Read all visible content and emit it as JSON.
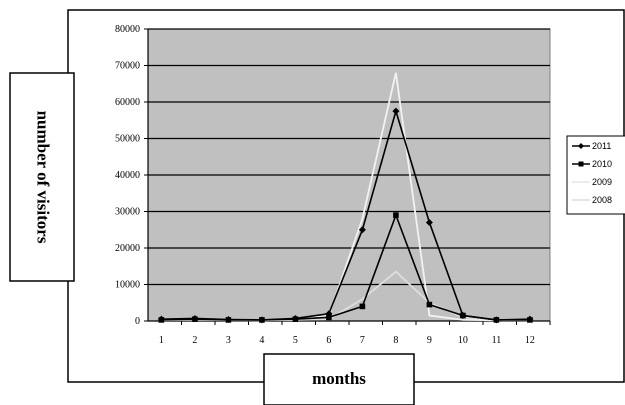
{
  "chart_data": {
    "type": "line",
    "title": "",
    "xlabel": "months",
    "ylabel": "number of visitors",
    "x": [
      1,
      2,
      3,
      4,
      5,
      6,
      7,
      8,
      9,
      10,
      11,
      12
    ],
    "categories": [
      "1",
      "2",
      "3",
      "4",
      "5",
      "6",
      "7",
      "8",
      "9",
      "10",
      "11",
      "12"
    ],
    "ylim": [
      0,
      80000
    ],
    "yticks": [
      0,
      10000,
      20000,
      30000,
      40000,
      50000,
      60000,
      70000,
      80000
    ],
    "ytick_labels": [
      "0",
      "10000",
      "20000",
      "30000",
      "40000",
      "50000",
      "60000",
      "70000",
      "80000"
    ],
    "grid": "horizontal",
    "plot_background": "#c0c0c0",
    "legend_position": "right",
    "series": [
      {
        "name": "2011",
        "color": "#000000",
        "marker": "diamond",
        "values": [
          500,
          700,
          400,
          300,
          700,
          2000,
          25000,
          57500,
          27000,
          1500,
          300,
          500
        ]
      },
      {
        "name": "2010",
        "color": "#000000",
        "marker": "square",
        "values": [
          300,
          500,
          300,
          300,
          500,
          1000,
          4000,
          29000,
          4500,
          1500,
          300,
          300
        ]
      },
      {
        "name": "2009",
        "color": "#f2f2f2",
        "marker": "none",
        "values": [
          300,
          400,
          300,
          200,
          300,
          1500,
          28000,
          68000,
          1500,
          300,
          200,
          200
        ]
      },
      {
        "name": "2008",
        "color": "#dddddd",
        "marker": "none",
        "values": [
          200,
          300,
          200,
          200,
          300,
          500,
          6000,
          13500,
          5000,
          1000,
          300,
          200
        ]
      }
    ]
  }
}
